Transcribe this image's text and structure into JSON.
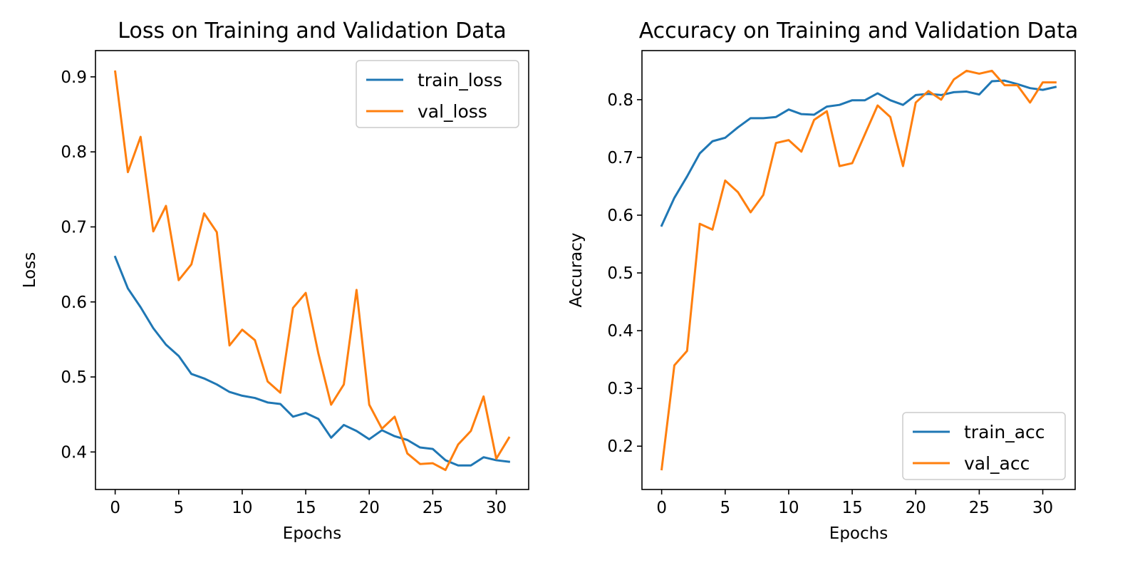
{
  "colors": {
    "train": "#1f77b4",
    "val": "#ff7f0e"
  },
  "chart_data": [
    {
      "type": "line",
      "title": "Loss on Training and Validation Data",
      "xlabel": "Epochs",
      "ylabel": "Loss",
      "xlim": [
        -1.55,
        32.55
      ],
      "ylim": [
        0.35,
        0.935
      ],
      "xticks": [
        0,
        5,
        10,
        15,
        20,
        25,
        30
      ],
      "yticks": [
        0.4,
        0.5,
        0.6,
        0.7,
        0.8,
        0.9
      ],
      "legend_position": "top-right",
      "x": [
        0,
        1,
        2,
        3,
        4,
        5,
        6,
        7,
        8,
        9,
        10,
        11,
        12,
        13,
        14,
        15,
        16,
        17,
        18,
        19,
        20,
        21,
        22,
        23,
        24,
        25,
        26,
        27,
        28,
        29,
        30,
        31
      ],
      "series": [
        {
          "name": "train_loss",
          "color": "#1f77b4",
          "values": [
            0.66,
            0.618,
            0.593,
            0.565,
            0.543,
            0.528,
            0.504,
            0.498,
            0.49,
            0.48,
            0.475,
            0.472,
            0.466,
            0.464,
            0.447,
            0.452,
            0.444,
            0.419,
            0.436,
            0.428,
            0.417,
            0.429,
            0.421,
            0.416,
            0.406,
            0.404,
            0.389,
            0.382,
            0.382,
            0.393,
            0.389,
            0.387
          ]
        },
        {
          "name": "val_loss",
          "color": "#ff7f0e",
          "values": [
            0.907,
            0.773,
            0.82,
            0.694,
            0.728,
            0.629,
            0.65,
            0.718,
            0.693,
            0.542,
            0.563,
            0.549,
            0.494,
            0.479,
            0.592,
            0.612,
            0.531,
            0.463,
            0.49,
            0.616,
            0.463,
            0.431,
            0.447,
            0.398,
            0.384,
            0.385,
            0.376,
            0.41,
            0.428,
            0.474,
            0.391,
            0.419
          ]
        }
      ]
    },
    {
      "type": "line",
      "title": "Accuracy  on Training and Validation Data",
      "xlabel": "Epochs",
      "ylabel": "Accuracy",
      "xlim": [
        -1.55,
        32.55
      ],
      "ylim": [
        0.125,
        0.885
      ],
      "xticks": [
        0,
        5,
        10,
        15,
        20,
        25,
        30
      ],
      "yticks": [
        0.2,
        0.3,
        0.4,
        0.5,
        0.6,
        0.7,
        0.8
      ],
      "legend_position": "bottom-right",
      "x": [
        0,
        1,
        2,
        3,
        4,
        5,
        6,
        7,
        8,
        9,
        10,
        11,
        12,
        13,
        14,
        15,
        16,
        17,
        18,
        19,
        20,
        21,
        22,
        23,
        24,
        25,
        26,
        27,
        28,
        29,
        30,
        31
      ],
      "series": [
        {
          "name": "train_acc",
          "color": "#1f77b4",
          "values": [
            0.582,
            0.63,
            0.667,
            0.707,
            0.728,
            0.734,
            0.752,
            0.768,
            0.768,
            0.77,
            0.783,
            0.775,
            0.774,
            0.788,
            0.791,
            0.799,
            0.799,
            0.811,
            0.799,
            0.791,
            0.808,
            0.81,
            0.808,
            0.813,
            0.814,
            0.809,
            0.832,
            0.833,
            0.827,
            0.82,
            0.817,
            0.822
          ]
        },
        {
          "name": "val_acc",
          "color": "#ff7f0e",
          "values": [
            0.16,
            0.34,
            0.365,
            0.585,
            0.575,
            0.66,
            0.64,
            0.605,
            0.635,
            0.725,
            0.73,
            0.71,
            0.765,
            0.78,
            0.685,
            0.69,
            0.74,
            0.79,
            0.77,
            0.685,
            0.795,
            0.815,
            0.8,
            0.835,
            0.85,
            0.845,
            0.85,
            0.825,
            0.825,
            0.795,
            0.83,
            0.83
          ]
        }
      ]
    }
  ]
}
